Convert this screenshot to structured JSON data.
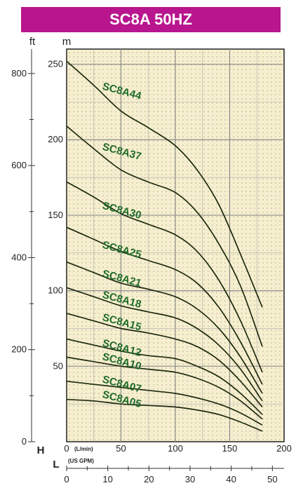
{
  "chart_data": {
    "type": "line",
    "title": "SC8A 50HZ",
    "y_units": {
      "left": "ft",
      "right": "m"
    },
    "axis_letters": {
      "head": "H",
      "flow": "L"
    },
    "primary_x": {
      "unit": "(L/min)",
      "ticks": [
        0,
        50,
        100,
        150,
        200
      ],
      "range": [
        0,
        200
      ]
    },
    "secondary_x": {
      "unit": "(US GPM)",
      "ticks": [
        0,
        10,
        20,
        30,
        40,
        50
      ]
    },
    "y_m": {
      "ticks": [
        50,
        100,
        150,
        200,
        250
      ],
      "range": [
        0,
        260
      ]
    },
    "y_ft": {
      "ticks": [
        0,
        200,
        400,
        600,
        800
      ]
    },
    "grid": true,
    "series": [
      {
        "name": "SC8A44",
        "label_at": [
          50,
          230
        ],
        "x": [
          0,
          25,
          50,
          75,
          100,
          120,
          140,
          160,
          180
        ],
        "y": [
          252,
          236,
          219,
          208,
          196,
          180,
          157,
          124,
          89
        ]
      },
      {
        "name": "SC8A37",
        "label_at": [
          50,
          190
        ],
        "x": [
          0,
          25,
          50,
          75,
          100,
          120,
          140,
          160,
          180
        ],
        "y": [
          209,
          194,
          180,
          172,
          165,
          152,
          131,
          103,
          63
        ]
      },
      {
        "name": "SC8A30",
        "label_at": [
          50,
          151
        ],
        "x": [
          0,
          25,
          50,
          75,
          100,
          120,
          140,
          160,
          180
        ],
        "y": [
          172,
          162,
          151,
          144,
          137,
          126,
          107,
          80,
          46
        ]
      },
      {
        "name": "SC8A25",
        "label_at": [
          50,
          125
        ],
        "x": [
          0,
          25,
          50,
          75,
          100,
          120,
          140,
          160,
          180
        ],
        "y": [
          142,
          134,
          126,
          120,
          114,
          105,
          89,
          66,
          38
        ]
      },
      {
        "name": "SC8A21",
        "label_at": [
          50,
          106
        ],
        "x": [
          0,
          25,
          50,
          75,
          100,
          120,
          140,
          160,
          180
        ],
        "y": [
          119,
          112,
          105,
          101,
          96,
          88,
          75,
          56,
          32
        ]
      },
      {
        "name": "SC8A18",
        "label_at": [
          50,
          92
        ],
        "x": [
          0,
          25,
          50,
          75,
          100,
          120,
          140,
          160,
          180
        ],
        "y": [
          102,
          96,
          90,
          86,
          82,
          75,
          64,
          48,
          27
        ]
      },
      {
        "name": "SC8A15",
        "label_at": [
          50,
          77
        ],
        "x": [
          0,
          25,
          50,
          75,
          100,
          120,
          140,
          160,
          180
        ],
        "y": [
          85,
          80,
          75,
          72,
          68,
          63,
          54,
          40,
          23
        ]
      },
      {
        "name": "SC8A12",
        "label_at": [
          50,
          60
        ],
        "x": [
          0,
          25,
          50,
          75,
          100,
          120,
          140,
          160,
          180
        ],
        "y": [
          68,
          64,
          60,
          57,
          55,
          50,
          43,
          32,
          18
        ]
      },
      {
        "name": "SC8A10",
        "label_at": [
          50,
          51
        ],
        "x": [
          0,
          25,
          50,
          75,
          100,
          120,
          140,
          160,
          180
        ],
        "y": [
          56,
          53,
          50,
          48,
          46,
          42,
          36,
          27,
          15
        ]
      },
      {
        "name": "SC8A07",
        "label_at": [
          50,
          36
        ],
        "x": [
          0,
          25,
          50,
          75,
          100,
          120,
          140,
          160,
          180
        ],
        "y": [
          40,
          38,
          36,
          34,
          32,
          29,
          25,
          19,
          11
        ]
      },
      {
        "name": "SC8A05",
        "label_at": [
          50,
          26
        ],
        "x": [
          0,
          25,
          50,
          75,
          100,
          120,
          140,
          160,
          180
        ],
        "y": [
          28,
          27,
          25,
          24,
          23,
          21,
          18,
          13,
          7
        ]
      }
    ]
  }
}
